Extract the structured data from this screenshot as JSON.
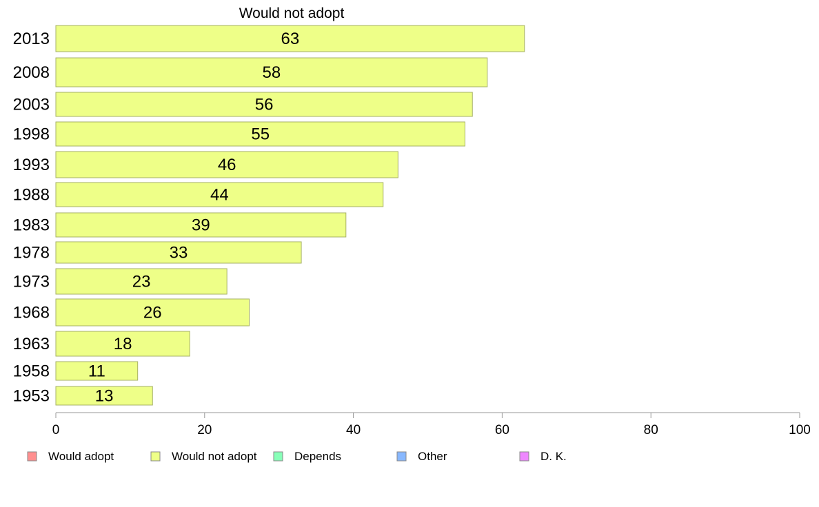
{
  "chart_data": {
    "type": "bar",
    "orientation": "horizontal",
    "title": "Would not adopt",
    "xlabel": "",
    "ylabel": "",
    "categories": [
      "2013",
      "2008",
      "2003",
      "1998",
      "1993",
      "1988",
      "1983",
      "1978",
      "1973",
      "1968",
      "1963",
      "1958",
      "1953"
    ],
    "series": [
      {
        "name": "Would not adopt",
        "values": [
          63,
          58,
          56,
          55,
          46,
          44,
          39,
          33,
          23,
          26,
          18,
          11,
          13
        ]
      }
    ],
    "data_labels": [
      "63",
      "58",
      "56",
      "55",
      "46",
      "44",
      "39",
      "33",
      "23",
      "26",
      "18",
      "11",
      "13"
    ],
    "xlim": [
      0,
      100
    ],
    "x_ticks": [
      0,
      20,
      40,
      60,
      80,
      100
    ],
    "x_tick_labels": [
      "0",
      "20",
      "40",
      "60",
      "80",
      "100"
    ],
    "grid": false,
    "bar_color": "#eeff88",
    "legend_position": "bottom",
    "legend": [
      {
        "label": "Would adopt",
        "color": "#ff8f8f"
      },
      {
        "label": "Would not adopt",
        "color": "#eeff88"
      },
      {
        "label": "Depends",
        "color": "#88ffb8"
      },
      {
        "label": "Other",
        "color": "#88b8ff"
      },
      {
        "label": "D. K.",
        "color": "#ee88ff"
      }
    ]
  }
}
